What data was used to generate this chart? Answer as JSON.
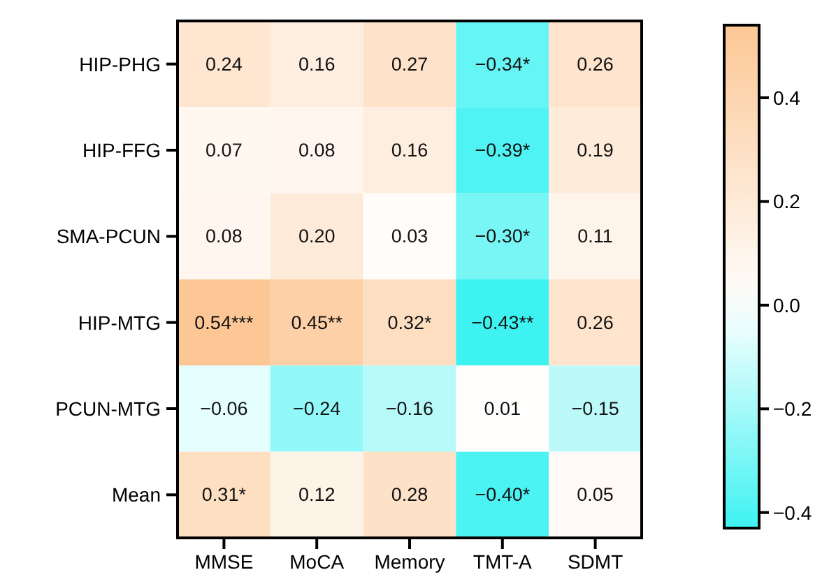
{
  "chart_data": {
    "type": "heatmap",
    "categories": [
      "MMSE",
      "MoCA",
      "Memory",
      "TMT-A",
      "SDMT"
    ],
    "y_categories": [
      "HIP-PHG",
      "HIP-FFG",
      "SMA-PCUN",
      "HIP-MTG",
      "PCUN-MTG",
      "Mean"
    ],
    "cells": [
      [
        0.24,
        0.16,
        0.27,
        -0.34,
        0.26
      ],
      [
        0.07,
        0.08,
        0.16,
        -0.39,
        0.19
      ],
      [
        0.08,
        0.2,
        0.03,
        -0.3,
        0.11
      ],
      [
        0.54,
        0.45,
        0.32,
        -0.43,
        0.26
      ],
      [
        -0.06,
        -0.24,
        -0.16,
        0.01,
        -0.15
      ],
      [
        0.31,
        0.12,
        0.28,
        -0.4,
        0.05
      ]
    ],
    "cell_labels": [
      [
        "0.24",
        "0.16",
        "0.27",
        "−0.34*",
        "0.26"
      ],
      [
        "0.07",
        "0.08",
        "0.16",
        "−0.39*",
        "0.19"
      ],
      [
        "0.08",
        "0.20",
        "0.03",
        "−0.30*",
        "0.11"
      ],
      [
        "0.54***",
        "0.45**",
        "0.32*",
        "−0.43**",
        "0.26"
      ],
      [
        "−0.06",
        "−0.24",
        "−0.16",
        "0.01",
        "−0.15"
      ],
      [
        "0.31*",
        "0.12",
        "0.28",
        "−0.40*",
        "0.05"
      ]
    ],
    "clim": [
      -0.43,
      0.54
    ],
    "cticks": [
      {
        "value": 0.4,
        "label": "0.4"
      },
      {
        "value": 0.2,
        "label": "0.2"
      },
      {
        "value": 0,
        "label": "0.0"
      },
      {
        "value": -0.2,
        "label": "−0.2"
      },
      {
        "value": -0.4,
        "label": "−0.4"
      }
    ]
  }
}
